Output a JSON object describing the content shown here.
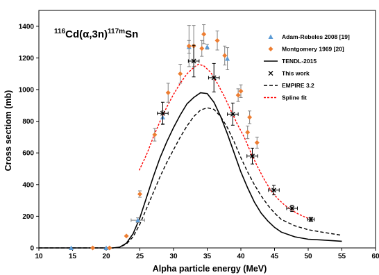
{
  "chart_data": {
    "type": "scatter",
    "title": "",
    "reaction_label": {
      "sup_mass": "116",
      "target": "Cd",
      "channel": "(α,3n)",
      "sup_product": "117m",
      "product": "Sn"
    },
    "xlabel": "Alpha particle energy (MeV)",
    "ylabel": "Cross sectiom (mb)",
    "xlim": [
      10,
      60
    ],
    "ylim": [
      0,
      1500
    ],
    "xticks": [
      10,
      15,
      20,
      25,
      30,
      35,
      40,
      45,
      50,
      55,
      60
    ],
    "yticks": [
      0,
      200,
      400,
      600,
      800,
      1000,
      1200,
      1400
    ],
    "grid": false,
    "legend_position": "top-right",
    "colors": {
      "adam_rebeles": "#5b9bd5",
      "montgomery": "#ed7d31",
      "this_work": "#000000",
      "tendl": "#000000",
      "empire": "#000000",
      "spline": "#ff0000"
    },
    "legend": [
      {
        "label": "Adam-Rebeles 2008 [19]",
        "kind": "triangle",
        "color": "#5b9bd5"
      },
      {
        "label": "Montgomery 1969 [20]",
        "kind": "diamond",
        "color": "#ed7d31"
      },
      {
        "label": "TENDL-2015",
        "kind": "solid",
        "color": "#000000"
      },
      {
        "label": "This work",
        "kind": "cross",
        "color": "#000000"
      },
      {
        "label": "EMPIRE 3.2",
        "kind": "dashed",
        "color": "#000000"
      },
      {
        "label": "Spline fit",
        "kind": "dotted",
        "color": "#ff0000"
      }
    ],
    "series": [
      {
        "name": "Adam-Rebeles 2008 [19]",
        "marker": "triangle",
        "points": [
          {
            "x": 14.8,
            "y": 0,
            "yerr": 0
          },
          {
            "x": 20.0,
            "y": 0,
            "yerr": 0
          },
          {
            "x": 24.7,
            "y": 175,
            "yerr": 15,
            "xerr": 1.0
          },
          {
            "x": 28.4,
            "y": 825,
            "yerr": 40
          },
          {
            "x": 32.3,
            "y": 1270,
            "yerr": 40
          },
          {
            "x": 35.0,
            "y": 1270,
            "yerr": 15
          },
          {
            "x": 38.0,
            "y": 1195,
            "yerr": 70
          }
        ]
      },
      {
        "name": "Montgomery 1969 [20]",
        "marker": "diamond",
        "points": [
          {
            "x": 18.0,
            "y": 0,
            "yerr": 0
          },
          {
            "x": 20.5,
            "y": 0,
            "yerr": 0
          },
          {
            "x": 23.0,
            "y": 75,
            "yerr": 0
          },
          {
            "x": 25.0,
            "y": 340,
            "yerr": 20
          },
          {
            "x": 27.2,
            "y": 715,
            "yerr": 40
          },
          {
            "x": 29.2,
            "y": 980,
            "yerr": 60
          },
          {
            "x": 31.0,
            "y": 1100,
            "yerr": 60
          },
          {
            "x": 32.3,
            "y": 1275,
            "yerr": 130
          },
          {
            "x": 33.0,
            "y": 1275,
            "yerr": 130
          },
          {
            "x": 34.2,
            "y": 1260,
            "yerr": 50
          },
          {
            "x": 34.5,
            "y": 1350,
            "yerr": 60
          },
          {
            "x": 36.5,
            "y": 1310,
            "yerr": 60
          },
          {
            "x": 37.6,
            "y": 1215,
            "yerr": 60
          },
          {
            "x": 39.6,
            "y": 965,
            "yerr": 40
          },
          {
            "x": 40.0,
            "y": 990,
            "yerr": 40
          },
          {
            "x": 41.0,
            "y": 730,
            "yerr": 40
          },
          {
            "x": 41.3,
            "y": 825,
            "yerr": 40
          },
          {
            "x": 42.4,
            "y": 665,
            "yerr": 35
          }
        ]
      },
      {
        "name": "This work",
        "marker": "cross",
        "points": [
          {
            "x": 28.4,
            "y": 850,
            "yerr": 70,
            "xerr": 0.8
          },
          {
            "x": 33.0,
            "y": 1180,
            "yerr": 100,
            "xerr": 0.8
          },
          {
            "x": 36.0,
            "y": 1075,
            "yerr": 90,
            "xerr": 0.8
          },
          {
            "x": 38.8,
            "y": 845,
            "yerr": 70,
            "xerr": 0.8
          },
          {
            "x": 41.7,
            "y": 580,
            "yerr": 50,
            "xerr": 0.8
          },
          {
            "x": 44.9,
            "y": 365,
            "yerr": 30,
            "xerr": 0.8
          },
          {
            "x": 47.6,
            "y": 250,
            "yerr": 20,
            "xerr": 0.8
          },
          {
            "x": 50.4,
            "y": 180,
            "yerr": 12,
            "xerr": 0.5
          }
        ]
      },
      {
        "name": "TENDL-2015",
        "style": "solid",
        "points": [
          [
            10,
            0
          ],
          [
            20,
            0
          ],
          [
            21,
            0
          ],
          [
            22,
            5
          ],
          [
            23,
            30
          ],
          [
            24,
            90
          ],
          [
            25,
            190
          ],
          [
            26,
            320
          ],
          [
            27,
            450
          ],
          [
            28,
            570
          ],
          [
            29,
            670
          ],
          [
            30,
            760
          ],
          [
            31,
            840
          ],
          [
            32,
            910
          ],
          [
            33,
            950
          ],
          [
            34,
            980
          ],
          [
            35,
            975
          ],
          [
            36,
            920
          ],
          [
            37,
            830
          ],
          [
            38,
            720
          ],
          [
            39,
            600
          ],
          [
            40,
            480
          ],
          [
            41,
            380
          ],
          [
            42,
            290
          ],
          [
            43,
            220
          ],
          [
            44,
            170
          ],
          [
            45,
            130
          ],
          [
            46,
            100
          ],
          [
            48,
            70
          ],
          [
            50,
            55
          ],
          [
            52,
            50
          ],
          [
            55,
            42
          ]
        ]
      },
      {
        "name": "EMPIRE 3.2",
        "style": "dashed",
        "points": [
          [
            10,
            0
          ],
          [
            20,
            0
          ],
          [
            21,
            0
          ],
          [
            22,
            5
          ],
          [
            23,
            25
          ],
          [
            24,
            70
          ],
          [
            25,
            150
          ],
          [
            26,
            250
          ],
          [
            27,
            350
          ],
          [
            28,
            450
          ],
          [
            29,
            540
          ],
          [
            30,
            620
          ],
          [
            31,
            700
          ],
          [
            32,
            770
          ],
          [
            33,
            830
          ],
          [
            34,
            870
          ],
          [
            35,
            885
          ],
          [
            36,
            875
          ],
          [
            37,
            830
          ],
          [
            38,
            760
          ],
          [
            39,
            670
          ],
          [
            40,
            570
          ],
          [
            41,
            480
          ],
          [
            42,
            400
          ],
          [
            43,
            330
          ],
          [
            44,
            270
          ],
          [
            45,
            220
          ],
          [
            46,
            180
          ],
          [
            48,
            140
          ],
          [
            50,
            115
          ],
          [
            52,
            100
          ],
          [
            55,
            80
          ]
        ]
      },
      {
        "name": "Spline fit",
        "style": "dotted",
        "points": [
          [
            24.9,
            490
          ],
          [
            26,
            590
          ],
          [
            27,
            700
          ],
          [
            28,
            800
          ],
          [
            29,
            890
          ],
          [
            30,
            970
          ],
          [
            31,
            1040
          ],
          [
            32,
            1100
          ],
          [
            33,
            1140
          ],
          [
            33.7,
            1160
          ],
          [
            34.5,
            1150
          ],
          [
            35.5,
            1110
          ],
          [
            36.5,
            1040
          ],
          [
            37.5,
            960
          ],
          [
            38.5,
            870
          ],
          [
            39.5,
            780
          ],
          [
            40.5,
            700
          ],
          [
            41.5,
            600
          ],
          [
            42.5,
            510
          ],
          [
            43.5,
            430
          ],
          [
            44.5,
            360
          ],
          [
            45.5,
            310
          ],
          [
            46.5,
            270
          ],
          [
            47.5,
            240
          ],
          [
            48.5,
            215
          ],
          [
            49.5,
            195
          ],
          [
            50.4,
            180
          ]
        ]
      }
    ]
  }
}
